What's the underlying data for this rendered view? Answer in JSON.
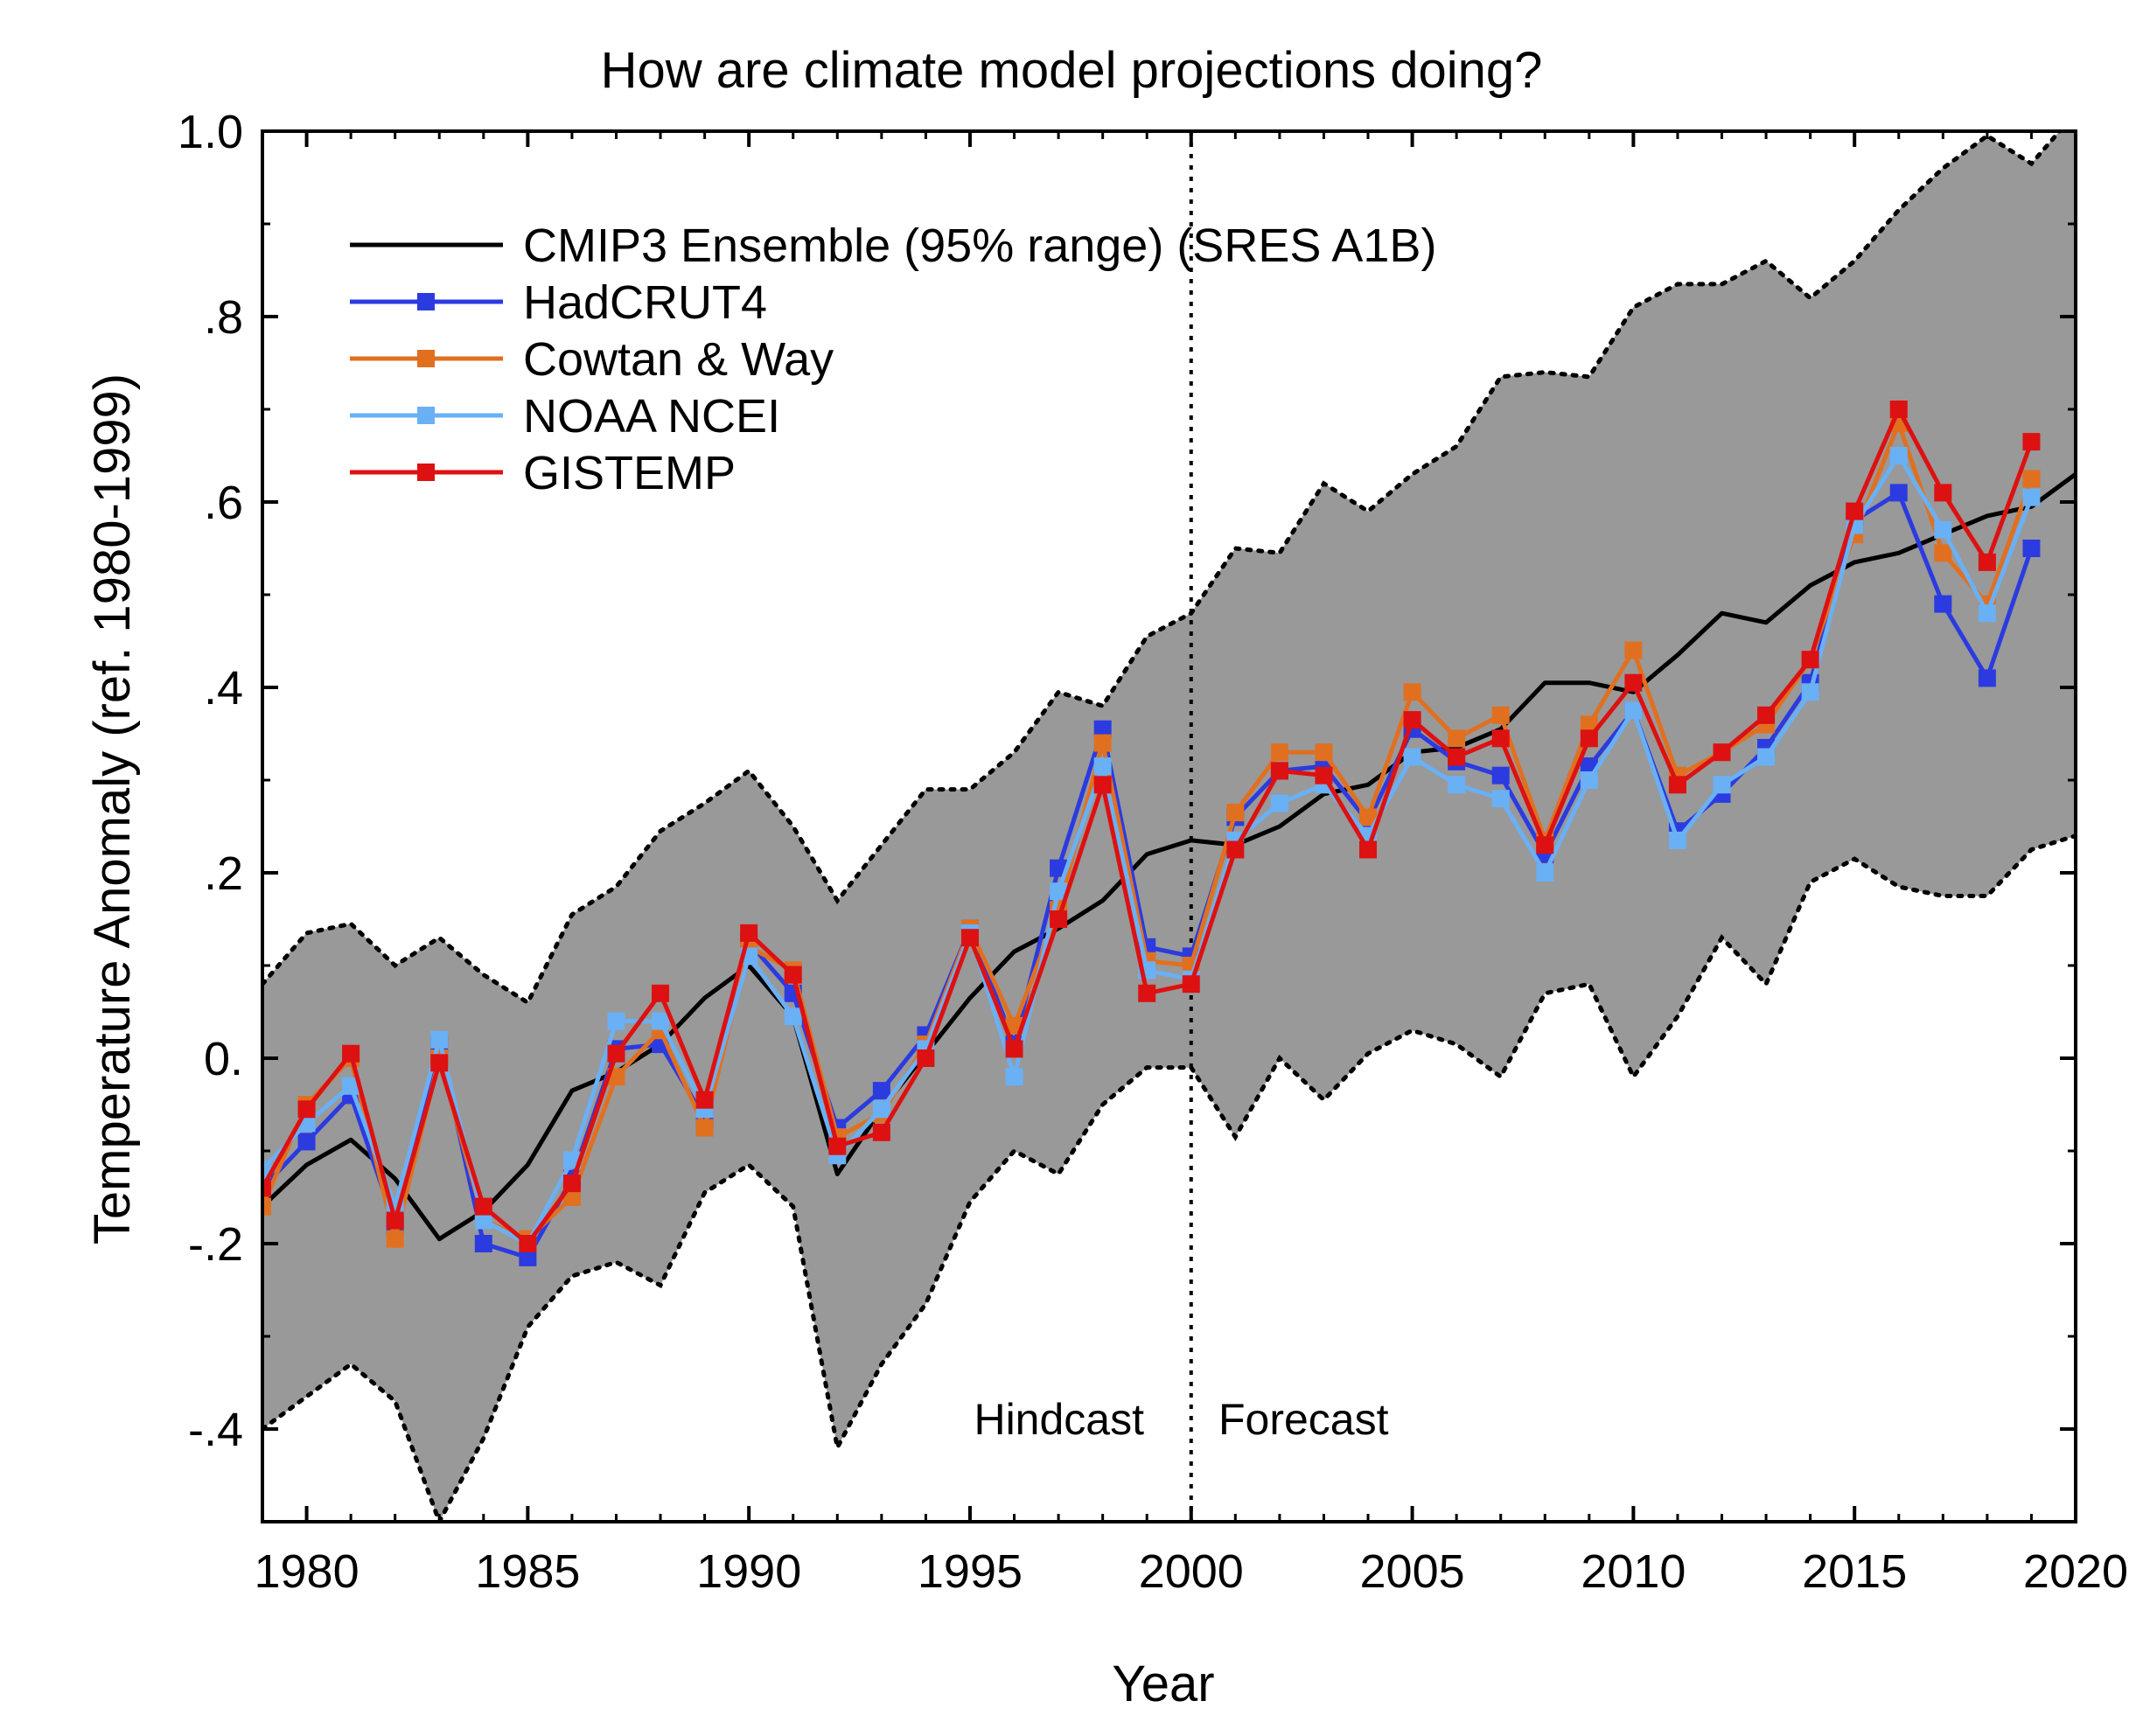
{
  "chart_data": {
    "type": "line",
    "title": "How are climate model projections doing?",
    "xlabel": "Year",
    "ylabel": "Temperature Anomaly (ref. 1980-1999)",
    "xlim": [
      1979,
      2020
    ],
    "ylim": [
      -0.5,
      1.0
    ],
    "xticks": [
      1980,
      1985,
      1990,
      1995,
      2000,
      2005,
      2010,
      2015,
      2020
    ],
    "xtick_labels": [
      "1980",
      "1985",
      "1990",
      "1995",
      "2000",
      "2005",
      "2010",
      "2015",
      "2020"
    ],
    "yticks": [
      -0.4,
      -0.2,
      0.0,
      0.2,
      0.4,
      0.6,
      0.8,
      1.0
    ],
    "ytick_labels": [
      "-.4",
      "-.2",
      "0.",
      ".2",
      ".4",
      ".6",
      ".8",
      "1.0"
    ],
    "divider_year": 2000,
    "annotations": {
      "left": "Hindcast",
      "right": "Forecast"
    },
    "legend_position": "top-left",
    "band": {
      "name": "CMIP3 95% range",
      "color": "#999999",
      "x": [
        1979,
        1980,
        1981,
        1982,
        1983,
        1984,
        1985,
        1986,
        1987,
        1988,
        1989,
        1990,
        1991,
        1992,
        1993,
        1994,
        1995,
        1996,
        1997,
        1998,
        1999,
        2000,
        2001,
        2002,
        2003,
        2004,
        2005,
        2006,
        2007,
        2008,
        2009,
        2010,
        2011,
        2012,
        2013,
        2014,
        2015,
        2016,
        2017,
        2018,
        2019,
        2020
      ],
      "upper": [
        0.08,
        0.135,
        0.145,
        0.1,
        0.13,
        0.09,
        0.06,
        0.155,
        0.185,
        0.245,
        0.275,
        0.31,
        0.25,
        0.17,
        0.23,
        0.29,
        0.29,
        0.33,
        0.395,
        0.38,
        0.455,
        0.48,
        0.55,
        0.545,
        0.62,
        0.59,
        0.63,
        0.66,
        0.735,
        0.74,
        0.735,
        0.81,
        0.835,
        0.835,
        0.86,
        0.82,
        0.86,
        0.915,
        0.96,
        0.995,
        0.965,
        1.02
      ],
      "lower": [
        -0.4,
        -0.365,
        -0.33,
        -0.37,
        -0.5,
        -0.41,
        -0.29,
        -0.235,
        -0.22,
        -0.245,
        -0.145,
        -0.115,
        -0.16,
        -0.42,
        -0.33,
        -0.265,
        -0.155,
        -0.1,
        -0.125,
        -0.05,
        -0.01,
        -0.01,
        -0.085,
        0.0,
        -0.045,
        0.005,
        0.03,
        0.015,
        -0.02,
        0.07,
        0.08,
        -0.02,
        0.045,
        0.13,
        0.08,
        0.19,
        0.215,
        0.185,
        0.175,
        0.175,
        0.225,
        0.24
      ]
    },
    "ensemble_mean": {
      "name": "CMIP3 Ensemble (95% range) (SRES A1B)",
      "color": "#000000",
      "x": [
        1979,
        1980,
        1981,
        1982,
        1983,
        1984,
        1985,
        1986,
        1987,
        1988,
        1989,
        1990,
        1991,
        1992,
        1993,
        1994,
        1995,
        1996,
        1997,
        1998,
        1999,
        2000,
        2001,
        2002,
        2003,
        2004,
        2005,
        2006,
        2007,
        2008,
        2009,
        2010,
        2011,
        2012,
        2013,
        2014,
        2015,
        2016,
        2017,
        2018,
        2019,
        2020
      ],
      "values": [
        -0.16,
        -0.115,
        -0.088,
        -0.13,
        -0.195,
        -0.165,
        -0.115,
        -0.035,
        -0.015,
        0.015,
        0.065,
        0.1,
        0.045,
        -0.125,
        -0.055,
        0.005,
        0.065,
        0.115,
        0.14,
        0.17,
        0.22,
        0.235,
        0.23,
        0.25,
        0.285,
        0.295,
        0.33,
        0.335,
        0.355,
        0.405,
        0.405,
        0.395,
        0.435,
        0.48,
        0.47,
        0.51,
        0.535,
        0.545,
        0.565,
        0.585,
        0.595,
        0.63
      ]
    },
    "series": [
      {
        "name": "HadCRUT4",
        "color": "#2b3be0",
        "x": [
          1979,
          1980,
          1981,
          1982,
          1983,
          1984,
          1985,
          1986,
          1987,
          1988,
          1989,
          1990,
          1991,
          1992,
          1993,
          1994,
          1995,
          1996,
          1997,
          1998,
          1999,
          2000,
          2001,
          2002,
          2003,
          2004,
          2005,
          2006,
          2007,
          2008,
          2009,
          2010,
          2011,
          2012,
          2013,
          2014,
          2015,
          2016,
          2017,
          2018,
          2019
        ],
        "values": [
          -0.14,
          -0.09,
          -0.04,
          -0.18,
          0.015,
          -0.2,
          -0.215,
          -0.13,
          0.01,
          0.015,
          -0.065,
          0.125,
          0.07,
          -0.075,
          -0.035,
          0.025,
          0.14,
          0.015,
          0.205,
          0.355,
          0.12,
          0.11,
          0.26,
          0.31,
          0.315,
          0.255,
          0.355,
          0.32,
          0.305,
          0.22,
          0.315,
          0.375,
          0.245,
          0.285,
          0.335,
          0.405,
          0.58,
          0.61,
          0.49,
          0.41,
          0.55
        ]
      },
      {
        "name": "Cowtan & Way",
        "color": "#e07020",
        "x": [
          1979,
          1980,
          1981,
          1982,
          1983,
          1984,
          1985,
          1986,
          1987,
          1988,
          1989,
          1990,
          1991,
          1992,
          1993,
          1994,
          1995,
          1996,
          1997,
          1998,
          1999,
          2000,
          2001,
          2002,
          2003,
          2004,
          2005,
          2006,
          2007,
          2008,
          2009,
          2010,
          2011,
          2012,
          2013,
          2014,
          2015,
          2016,
          2017,
          2018,
          2019
        ],
        "values": [
          -0.16,
          -0.05,
          0.0,
          -0.195,
          0.0,
          -0.175,
          -0.195,
          -0.15,
          -0.02,
          0.03,
          -0.075,
          0.12,
          0.095,
          -0.085,
          -0.06,
          0.015,
          0.14,
          0.035,
          0.16,
          0.34,
          0.105,
          0.1,
          0.265,
          0.33,
          0.33,
          0.26,
          0.395,
          0.345,
          0.37,
          0.235,
          0.36,
          0.44,
          0.305,
          0.33,
          0.36,
          0.43,
          0.565,
          0.685,
          0.545,
          0.49,
          0.625
        ]
      },
      {
        "name": "NOAA NCEI",
        "color": "#6ab0f5",
        "x": [
          1979,
          1980,
          1981,
          1982,
          1983,
          1984,
          1985,
          1986,
          1987,
          1988,
          1989,
          1990,
          1991,
          1992,
          1993,
          1994,
          1995,
          1996,
          1997,
          1998,
          1999,
          2000,
          2001,
          2002,
          2003,
          2004,
          2005,
          2006,
          2007,
          2008,
          2009,
          2010,
          2011,
          2012,
          2013,
          2014,
          2015,
          2016,
          2017,
          2018,
          2019
        ],
        "values": [
          -0.12,
          -0.07,
          -0.03,
          -0.16,
          0.02,
          -0.175,
          -0.2,
          -0.11,
          0.04,
          0.04,
          -0.055,
          0.11,
          0.045,
          -0.105,
          -0.055,
          0.01,
          0.135,
          -0.02,
          0.18,
          0.315,
          0.095,
          0.085,
          0.235,
          0.275,
          0.295,
          0.24,
          0.325,
          0.295,
          0.28,
          0.2,
          0.3,
          0.375,
          0.235,
          0.295,
          0.325,
          0.395,
          0.575,
          0.65,
          0.57,
          0.48,
          0.605
        ]
      },
      {
        "name": "GISTEMP",
        "color": "#dd1111",
        "x": [
          1979,
          1980,
          1981,
          1982,
          1983,
          1984,
          1985,
          1986,
          1987,
          1988,
          1989,
          1990,
          1991,
          1992,
          1993,
          1994,
          1995,
          1996,
          1997,
          1998,
          1999,
          2000,
          2001,
          2002,
          2003,
          2004,
          2005,
          2006,
          2007,
          2008,
          2009,
          2010,
          2011,
          2012,
          2013,
          2014,
          2015,
          2016,
          2017,
          2018,
          2019
        ],
        "values": [
          -0.14,
          -0.055,
          0.005,
          -0.175,
          -0.005,
          -0.16,
          -0.2,
          -0.135,
          0.005,
          0.07,
          -0.045,
          0.135,
          0.09,
          -0.095,
          -0.08,
          0.0,
          0.13,
          0.01,
          0.15,
          0.295,
          0.07,
          0.08,
          0.225,
          0.31,
          0.305,
          0.225,
          0.365,
          0.325,
          0.345,
          0.23,
          0.345,
          0.405,
          0.295,
          0.33,
          0.37,
          0.43,
          0.59,
          0.7,
          0.61,
          0.535,
          0.665
        ]
      }
    ]
  }
}
